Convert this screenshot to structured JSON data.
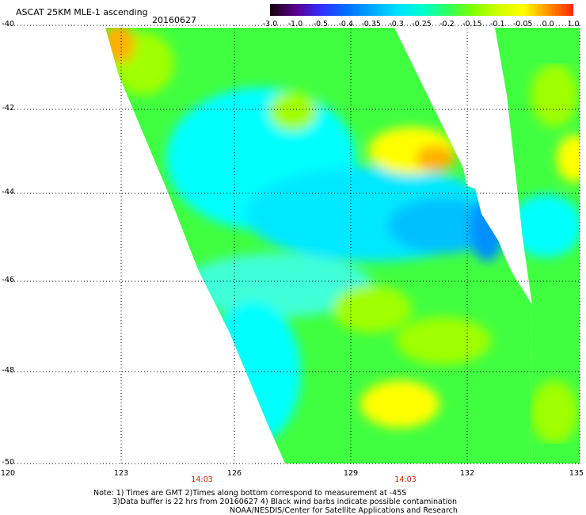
{
  "header": {
    "title": "ASCAT 25KM MLE-1 ascending",
    "date": "20160627"
  },
  "colorbar": {
    "labels": [
      "-3.0",
      "-1.0",
      "-0.5",
      "-0.4",
      "-0.35",
      "-0.3",
      "-0.25",
      "-0.2",
      "-0.15",
      "-0.1",
      "-0.05",
      "0.0",
      "1.0"
    ],
    "colors": [
      "#1a0010",
      "#5a0090",
      "#3030ff",
      "#0070ff",
      "#00a8ff",
      "#00e0ff",
      "#00ffd0",
      "#30ff60",
      "#80ff00",
      "#d0ff00",
      "#ffff00",
      "#ff9000",
      "#ff2000"
    ]
  },
  "axes": {
    "y_labels": [
      "-40",
      "-42",
      "-44",
      "-46",
      "-48",
      "-50"
    ],
    "x_labels": [
      "120",
      "123",
      "126",
      "129",
      "132",
      "135"
    ],
    "times": [
      "14:03",
      "14:03"
    ]
  },
  "map": {
    "region": {
      "lat_range": [
        -50,
        -40
      ],
      "lon_range": [
        120,
        135
      ]
    },
    "swath_colors": {
      "cyan": "#00ffff",
      "light_cyan": "#40ffd8",
      "blue": "#00c0ff",
      "deep_blue": "#0090ff",
      "green": "#40ff40",
      "yellow_green": "#a0ff00",
      "yellow": "#ffff00",
      "orange": "#ffb000"
    }
  },
  "notes": {
    "line1": "Note: 1) Times are GMT 2)Times along bottom correspond to measurement at -45S",
    "line2": "3)Data buffer is 22 hrs from 20160627 4) Black wind barbs indicate possible contamination",
    "line3": "NOAA/NESDIS/Center for Satellite Applications and Research"
  }
}
